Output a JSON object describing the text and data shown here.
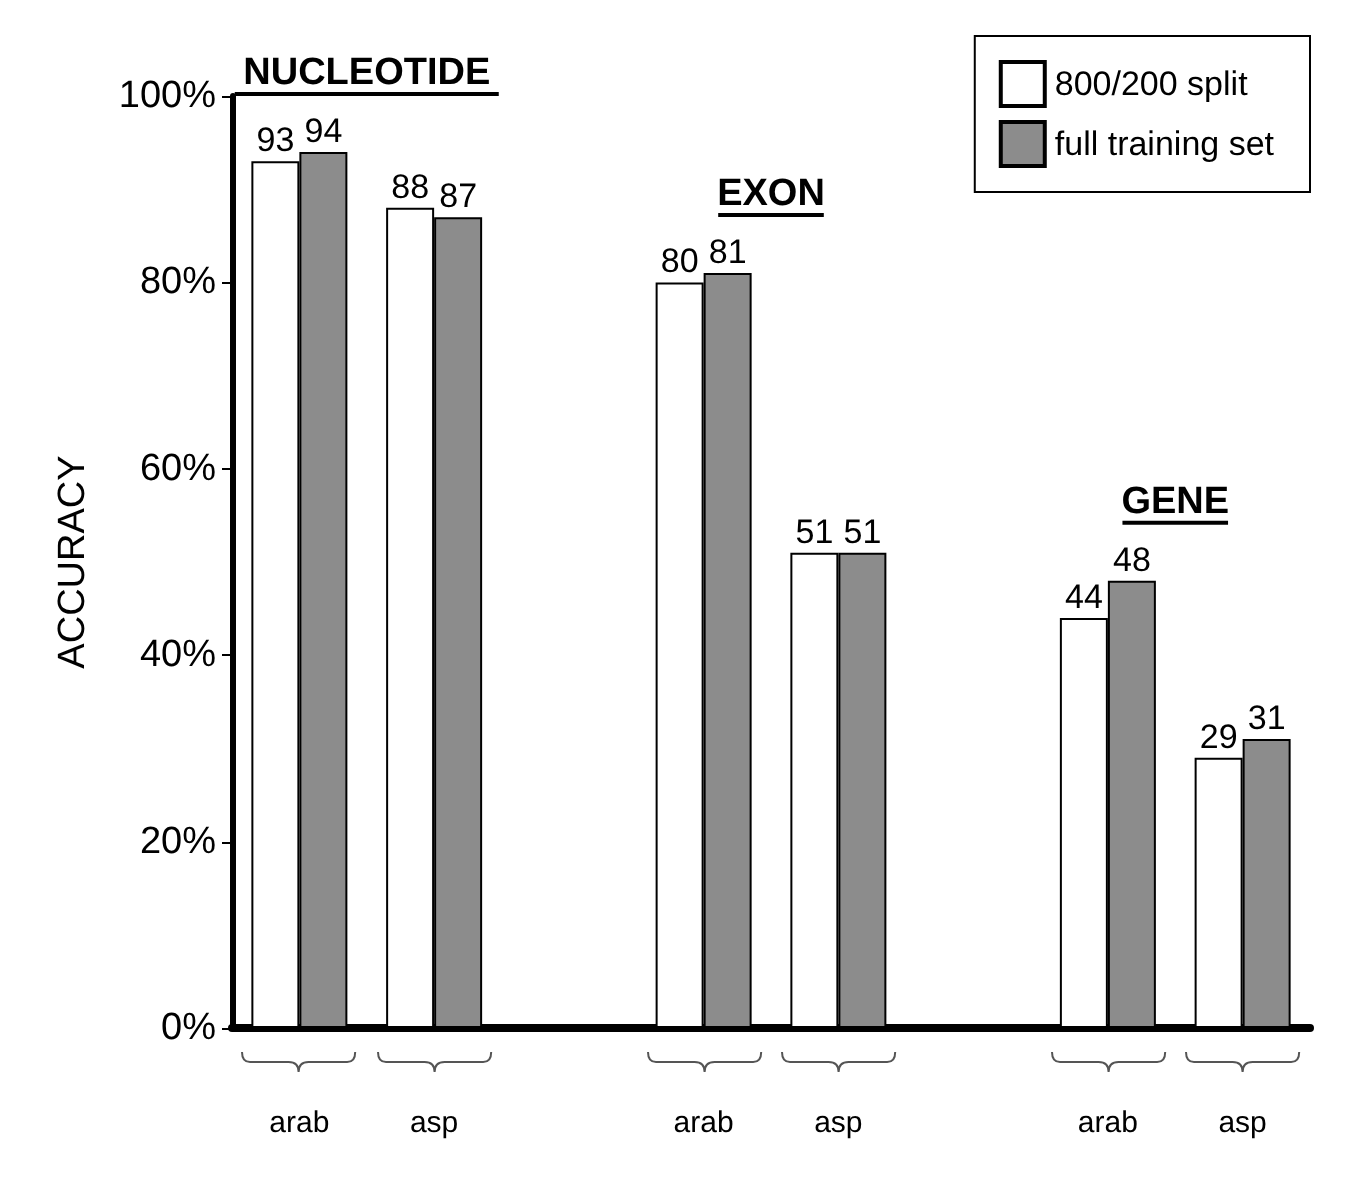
{
  "chart_data": {
    "type": "bar",
    "categories": [
      "arab",
      "asp",
      null,
      "arab",
      "asp",
      null,
      "arab",
      "asp"
    ],
    "series": [
      {
        "name": "800/200 split",
        "color": "#ffffff",
        "values": [
          93,
          88,
          null,
          80,
          51,
          null,
          44,
          29
        ]
      },
      {
        "name": "full training set",
        "color": "#8c8c8c",
        "values": [
          94,
          87,
          null,
          81,
          51,
          null,
          48,
          31
        ]
      }
    ],
    "ylabel": "ACCURACY",
    "ylim": [
      0,
      100
    ],
    "yticks": [
      {
        "value": 0,
        "label": "0%"
      },
      {
        "value": 20,
        "label": "20%"
      },
      {
        "value": 40,
        "label": "40%"
      },
      {
        "value": 60,
        "label": "60%"
      },
      {
        "value": 80,
        "label": "80%"
      },
      {
        "value": 100,
        "label": "100%"
      }
    ],
    "annotations": [
      "NUCLEOTIDE",
      "EXON",
      "GENE"
    ],
    "data_labels": true,
    "legend": "top right",
    "grid": false
  }
}
